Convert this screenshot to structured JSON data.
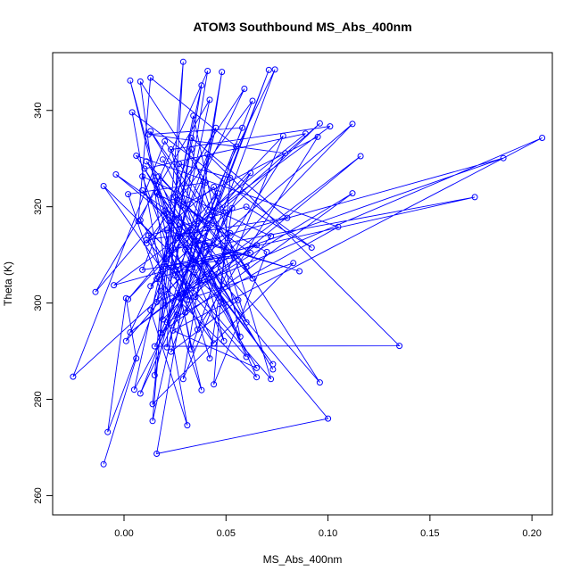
{
  "chart_data": {
    "type": "line",
    "title": "ATOM3 Southbound MS_Abs_400nm",
    "xlabel": "MS_Abs_400nm",
    "ylabel": "Theta (K)",
    "xlim": [
      -0.035,
      0.21
    ],
    "ylim": [
      256,
      352
    ],
    "xticks": [
      0.0,
      0.05,
      0.1,
      0.15,
      0.2
    ],
    "xtick_labels": [
      "0.00",
      "0.05",
      "0.10",
      "0.15",
      "0.20"
    ],
    "yticks": [
      260,
      280,
      300,
      320,
      340
    ],
    "ytick_labels": [
      "260",
      "280",
      "300",
      "320",
      "340"
    ],
    "grid": false,
    "legend": "none",
    "series_color": "#0000ff",
    "markers": "open-circle",
    "series": [
      {
        "points": [
          [
            -0.01,
            266.5
          ],
          [
            0.006,
            288.5
          ],
          [
            0.001,
            301.0
          ],
          [
            -0.008,
            273.2
          ],
          [
            0.018,
            302.5
          ],
          [
            0.002,
            322.6
          ],
          [
            0.04,
            325.0
          ],
          [
            0.014,
            275.5
          ],
          [
            0.029,
            350.1
          ],
          [
            0.021,
            290.8
          ],
          [
            0.055,
            332.5
          ],
          [
            0.013,
            346.8
          ],
          [
            0.007,
            317.0
          ],
          [
            0.049,
            299.9
          ],
          [
            0.031,
            315.0
          ],
          [
            0.013,
            303.5
          ],
          [
            0.096,
            337.3
          ],
          [
            0.021,
            309.2
          ],
          [
            0.072,
            284.2
          ],
          [
            0.044,
            324.1
          ],
          [
            0.011,
            312.4
          ],
          [
            0.063,
            342.0
          ],
          [
            0.008,
            281.2
          ],
          [
            0.026,
            297.5
          ],
          [
            0.071,
            348.4
          ],
          [
            0.028,
            301.0
          ],
          [
            0.033,
            290.4
          ],
          [
            0.052,
            314.5
          ],
          [
            -0.025,
            284.7
          ],
          [
            0.02,
            333.6
          ],
          [
            0.096,
            283.5
          ],
          [
            0.016,
            322.9
          ],
          [
            0.038,
            281.9
          ],
          [
            0.012,
            314.0
          ],
          [
            0.06,
            320.0
          ],
          [
            0.092,
            311.5
          ],
          [
            0.004,
            339.6
          ],
          [
            0.031,
            274.6
          ],
          [
            0.013,
            298.5
          ],
          [
            0.041,
            330.9
          ],
          [
            0.135,
            291.1
          ],
          [
            0.015,
            291.0
          ],
          [
            0.062,
            327.0
          ],
          [
            0.03,
            311.0
          ],
          [
            0.073,
            287.3
          ],
          [
            0.009,
            323.4
          ],
          [
            0.056,
            300.6
          ],
          [
            0.023,
            289.9
          ],
          [
            0.074,
            348.5
          ],
          [
            0.025,
            305.7
          ],
          [
            0.112,
            337.2
          ],
          [
            0.019,
            296.6
          ],
          [
            0.042,
            342.2
          ],
          [
            -0.014,
            302.3
          ],
          [
            0.02,
            319.2
          ],
          [
            0.065,
            286.5
          ],
          [
            0.024,
            294.3
          ],
          [
            0.205,
            334.3
          ],
          [
            0.016,
            300.2
          ],
          [
            0.034,
            338.9
          ],
          [
            0.057,
            293.0
          ],
          [
            0.01,
            327.9
          ],
          [
            0.089,
            335.2
          ],
          [
            0.026,
            313.5
          ],
          [
            0.1,
            276.0
          ],
          [
            0.016,
            268.7
          ],
          [
            0.048,
            348.0
          ],
          [
            0.03,
            298.0
          ],
          [
            0.079,
            331.1
          ],
          [
            0.012,
            335.0
          ],
          [
            0.058,
            336.4
          ],
          [
            0.021,
            296.0
          ],
          [
            0.105,
            315.8
          ],
          [
            0.006,
            330.6
          ],
          [
            0.043,
            306.0
          ],
          [
            0.065,
            284.6
          ],
          [
            0.016,
            305.0
          ],
          [
            0.186,
            330.1
          ],
          [
            0.022,
            310.8
          ],
          [
            0.044,
            291.6
          ],
          [
            -0.01,
            324.3
          ],
          [
            0.037,
            304.6
          ],
          [
            0.017,
            326.3
          ],
          [
            0.06,
            307.5
          ],
          [
            0.072,
            313.9
          ],
          [
            0.009,
            326.3
          ],
          [
            0.031,
            300.7
          ],
          [
            0.116,
            330.5
          ],
          [
            0.003,
            293.9
          ],
          [
            0.047,
            308.7
          ],
          [
            0.024,
            322.0
          ],
          [
            0.059,
            344.5
          ],
          [
            0.001,
            292.1
          ],
          [
            0.04,
            311.7
          ],
          [
            0.172,
            322.0
          ],
          [
            0.02,
            307.6
          ],
          [
            0.008,
            346.0
          ],
          [
            0.05,
            318.8
          ],
          [
            0.035,
            301.3
          ],
          [
            0.083,
            308.3
          ],
          [
            0.014,
            279.0
          ],
          [
            0.027,
            328.9
          ],
          [
            0.052,
            326.0
          ],
          [
            0.044,
            283.1
          ],
          [
            0.07,
            310.6
          ],
          [
            0.017,
            322.5
          ],
          [
            0.003,
            346.2
          ],
          [
            0.036,
            294.5
          ],
          [
            0.095,
            334.5
          ],
          [
            0.028,
            320.2
          ],
          [
            0.06,
            288.8
          ],
          [
            0.011,
            313.1
          ],
          [
            0.08,
            317.7
          ],
          [
            0.033,
            334.3
          ],
          [
            0.02,
            299.5
          ],
          [
            0.065,
            312.0
          ],
          [
            -0.005,
            303.7
          ],
          [
            0.101,
            336.7
          ],
          [
            0.023,
            331.9
          ],
          [
            0.049,
            292.1
          ],
          [
            0.015,
            325.4
          ],
          [
            0.042,
            288.5
          ],
          [
            0.053,
            319.7
          ],
          [
            0.005,
            282.0
          ],
          [
            0.038,
            345.2
          ],
          [
            0.027,
            317.7
          ],
          [
            0.073,
            286.2
          ],
          [
            0.011,
            329.4
          ],
          [
            0.063,
            305.1
          ],
          [
            0.013,
            335.7
          ],
          [
            0.041,
            315.6
          ],
          [
            0.029,
            284.2
          ],
          [
            0.078,
            334.7
          ],
          [
            0.002,
            300.8
          ],
          [
            0.046,
            322.8
          ],
          [
            0.018,
            293.8
          ],
          [
            0.112,
            322.8
          ],
          [
            0.03,
            301.7
          ],
          [
            0.008,
            317.2
          ],
          [
            0.041,
            348.2
          ],
          [
            0.025,
            307.0
          ],
          [
            0.054,
            309.5
          ],
          [
            -0.004,
            326.7
          ],
          [
            0.036,
            312.8
          ],
          [
            0.086,
            306.6
          ],
          [
            0.021,
            315.1
          ],
          [
            0.015,
            285.0
          ],
          [
            0.045,
            336.4
          ],
          [
            0.026,
            321.4
          ],
          [
            0.062,
            310.4
          ],
          [
            0.009,
            306.9
          ],
          [
            0.033,
            331.9
          ],
          [
            0.06,
            296.0
          ],
          [
            0.019,
            329.8
          ]
        ]
      }
    ]
  }
}
